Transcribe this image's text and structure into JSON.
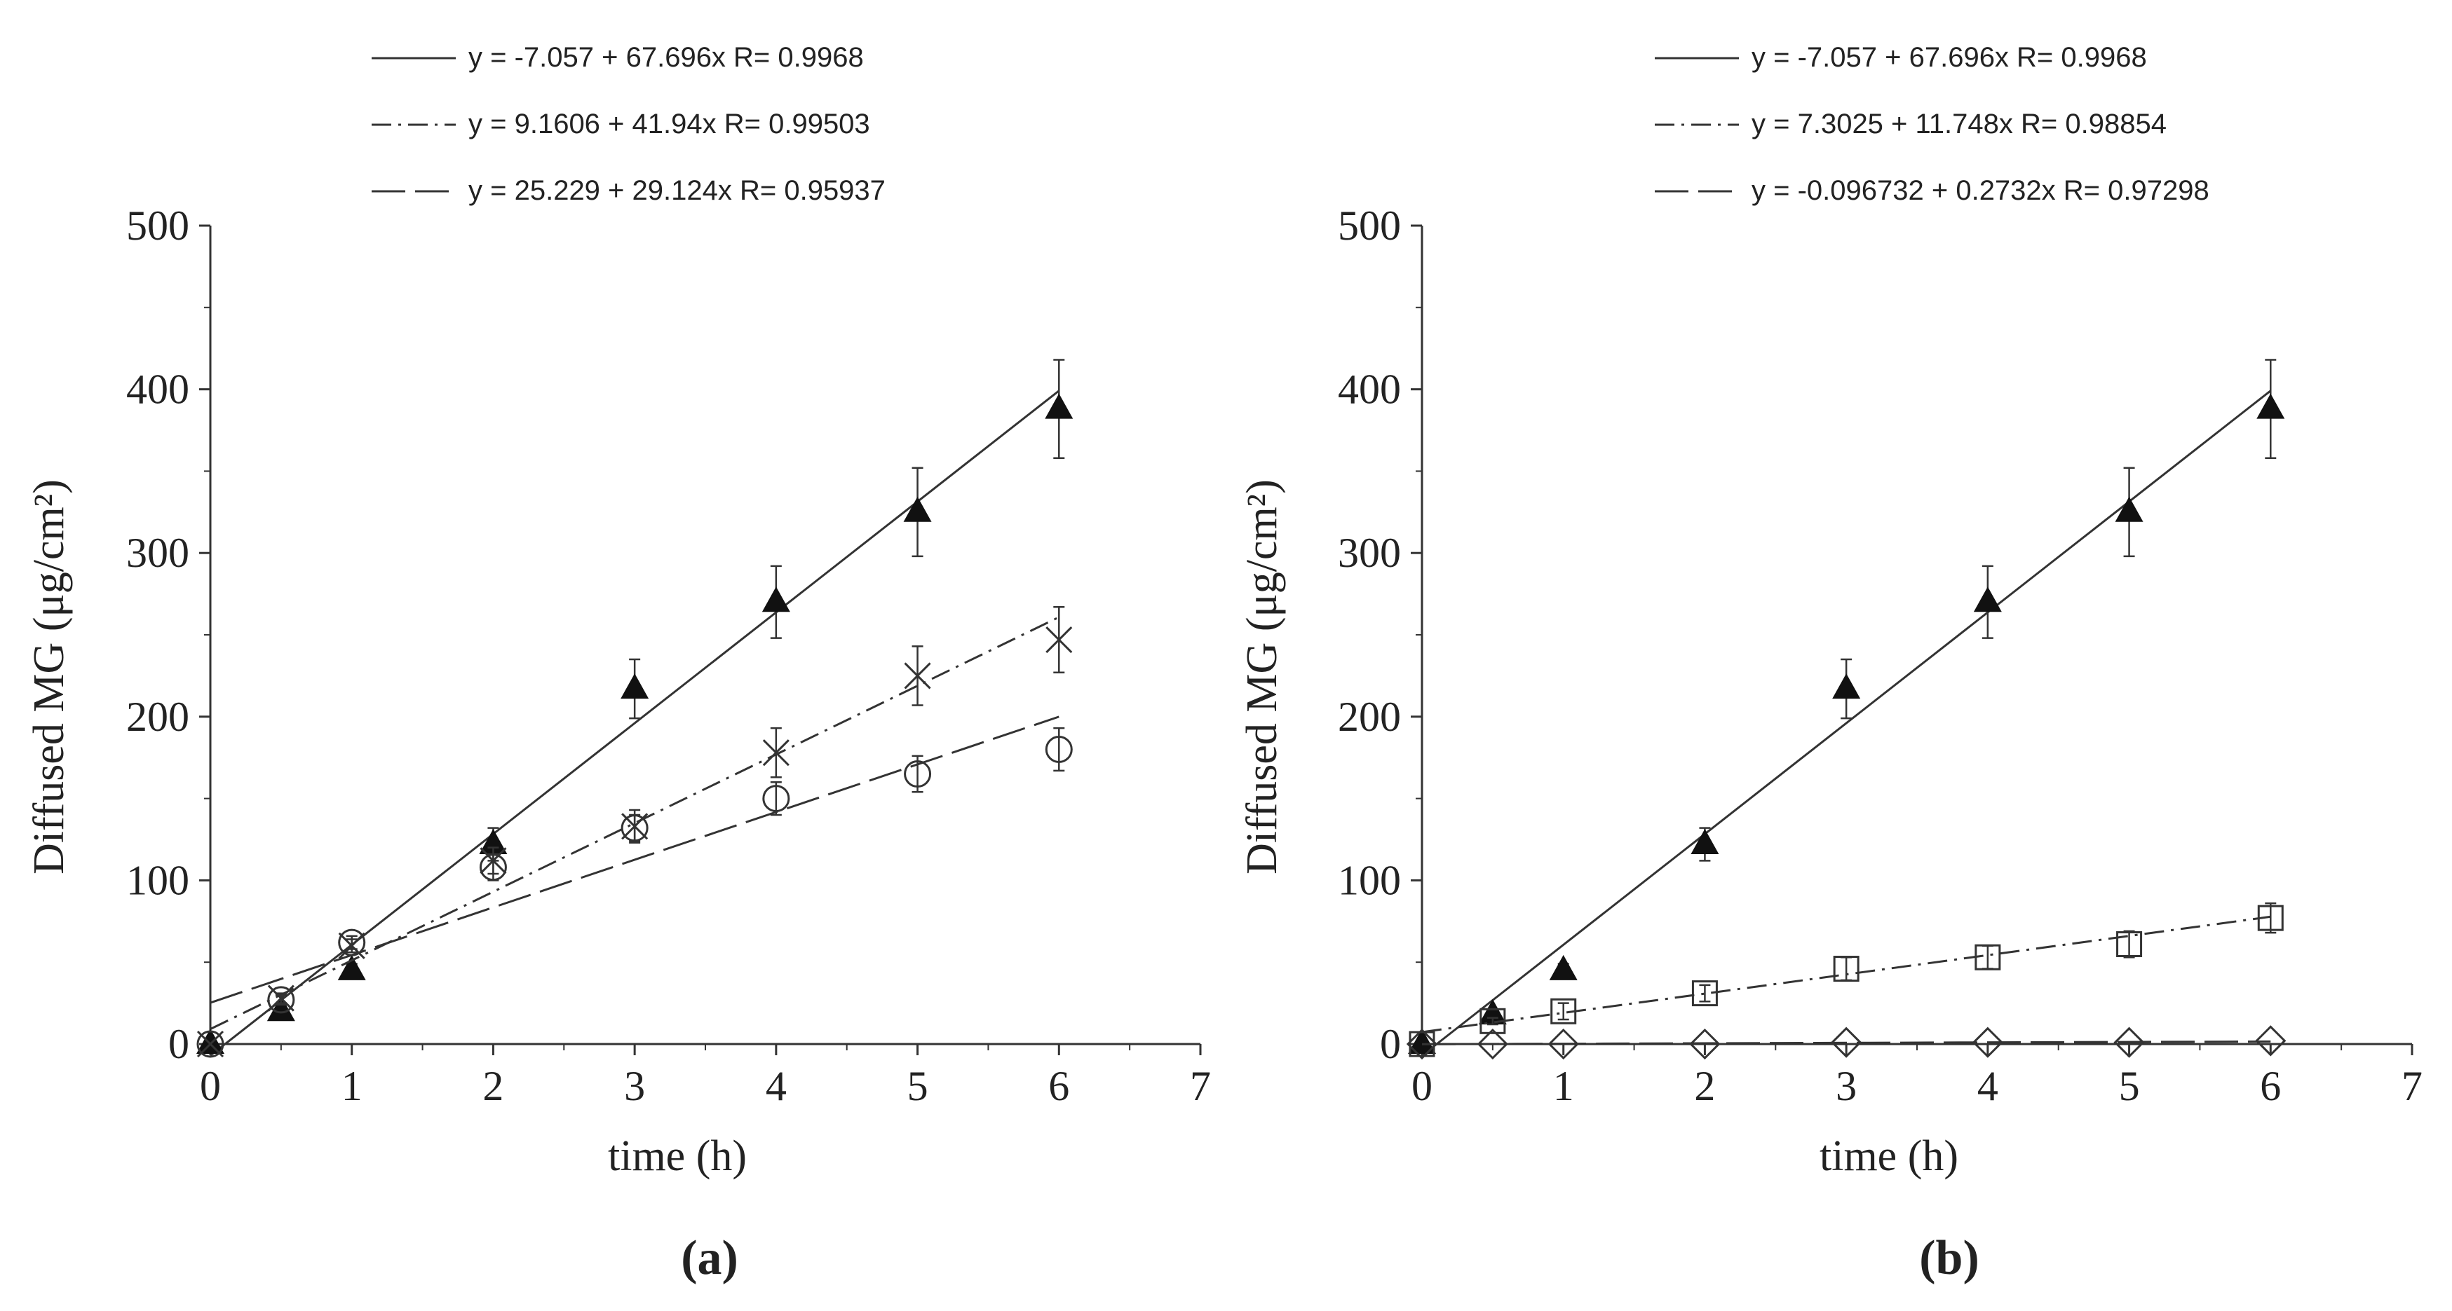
{
  "chart_data": [
    {
      "type": "scatter",
      "panel_label": "(a)",
      "xlabel": "time (h)",
      "ylabel": "Diffused MG (μg/cm²)",
      "xlim": [
        0,
        7
      ],
      "ylim": [
        0,
        500
      ],
      "x_ticks": [
        "0",
        "1",
        "2",
        "3",
        "4",
        "5",
        "6",
        "7"
      ],
      "y_ticks": [
        "0",
        "100",
        "200",
        "300",
        "400",
        "500"
      ],
      "legend": [
        {
          "eq": "y = -7.057 + 67.696x",
          "r": "R= 0.9968",
          "style": "solid"
        },
        {
          "eq": "y = 9.1606 + 41.94x",
          "r": "R= 0.99503",
          "style": "dashdot"
        },
        {
          "eq": "y = 25.229 + 29.124x",
          "r": "R= 0.95937",
          "style": "longdash"
        }
      ],
      "series": [
        {
          "name": "triangle",
          "marker": "triangle-filled",
          "fit": [
            -7.057,
            67.696
          ],
          "line": "solid",
          "x": [
            0,
            0.5,
            1,
            2,
            3,
            4,
            5,
            6
          ],
          "y": [
            0,
            20,
            45,
            122,
            217,
            270,
            325,
            388
          ],
          "err": [
            0,
            3,
            4,
            10,
            18,
            22,
            27,
            30
          ]
        },
        {
          "name": "cross",
          "marker": "x",
          "fit": [
            9.1606,
            41.94
          ],
          "line": "dashdot",
          "x": [
            0,
            0.5,
            1,
            2,
            3,
            4,
            5,
            6
          ],
          "y": [
            0,
            28,
            60,
            112,
            133,
            178,
            225,
            247
          ],
          "err": [
            0,
            3,
            4,
            8,
            10,
            15,
            18,
            20
          ]
        },
        {
          "name": "circle",
          "marker": "circle",
          "fit": [
            25.229,
            29.124
          ],
          "line": "longdash",
          "x": [
            0,
            0.5,
            1,
            2,
            3,
            4,
            5,
            6
          ],
          "y": [
            0,
            27,
            62,
            108,
            132,
            150,
            165,
            180
          ],
          "err": [
            0,
            3,
            4,
            8,
            8,
            10,
            11,
            13
          ]
        }
      ]
    },
    {
      "type": "scatter",
      "panel_label": "(b)",
      "xlabel": "time (h)",
      "ylabel": "Diffused MG (μg/cm²)",
      "xlim": [
        0,
        7
      ],
      "ylim": [
        0,
        500
      ],
      "x_ticks": [
        "0",
        "1",
        "2",
        "3",
        "4",
        "5",
        "6",
        "7"
      ],
      "y_ticks": [
        "0",
        "100",
        "200",
        "300",
        "400",
        "500"
      ],
      "legend": [
        {
          "eq": "y = -7.057 + 67.696x",
          "r": "R= 0.9968",
          "style": "solid"
        },
        {
          "eq": "y = 7.3025 + 11.748x",
          "r": "R= 0.98854",
          "style": "dashdot"
        },
        {
          "eq": "y = -0.096732 + 0.2732x",
          "r": "R= 0.97298",
          "style": "longdash"
        }
      ],
      "series": [
        {
          "name": "triangle",
          "marker": "triangle-filled",
          "fit": [
            -7.057,
            67.696
          ],
          "line": "solid",
          "x": [
            0,
            0.5,
            1,
            2,
            3,
            4,
            5,
            6
          ],
          "y": [
            0,
            18,
            45,
            122,
            217,
            270,
            325,
            388
          ],
          "err": [
            0,
            3,
            4,
            10,
            18,
            22,
            27,
            30
          ]
        },
        {
          "name": "square",
          "marker": "square",
          "fit": [
            7.3025,
            11.748
          ],
          "line": "dashdot",
          "x": [
            0,
            0.5,
            1,
            2,
            3,
            4,
            5,
            6
          ],
          "y": [
            0,
            14,
            20,
            31,
            46,
            53,
            61,
            77
          ],
          "err": [
            0,
            2,
            5,
            5,
            7,
            7,
            8,
            9
          ]
        },
        {
          "name": "diamond",
          "marker": "diamond",
          "fit": [
            -0.096732,
            0.2732
          ],
          "line": "longdash",
          "x": [
            0,
            0.5,
            1,
            2,
            3,
            4,
            5,
            6
          ],
          "y": [
            0,
            0,
            0,
            0,
            1,
            1,
            1,
            2
          ],
          "err": [
            0,
            0,
            0,
            0,
            0,
            0,
            0,
            0
          ]
        }
      ]
    }
  ]
}
